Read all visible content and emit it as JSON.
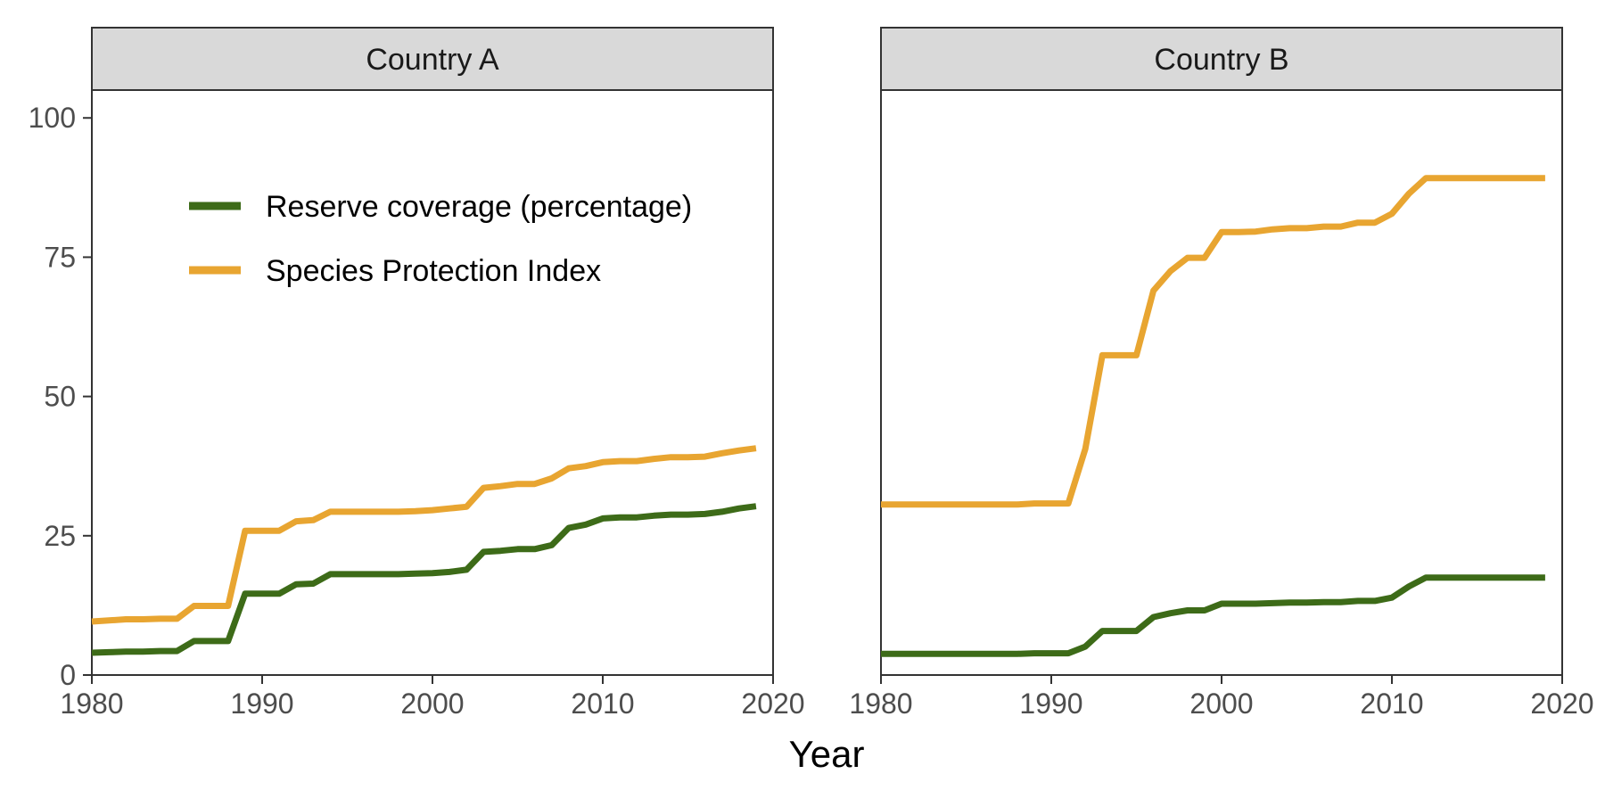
{
  "chart_data": {
    "type": "line",
    "xlabel": "Year",
    "ylabel": "",
    "xlim": [
      1980,
      2020
    ],
    "ylim": [
      0,
      105
    ],
    "x_ticks": [
      1980,
      1990,
      2000,
      2010,
      2020
    ],
    "y_ticks": [
      0,
      25,
      50,
      75,
      100
    ],
    "legend_position": "upper-left of first panel",
    "legend": [
      {
        "name": "Reserve coverage (percentage)",
        "color": "#3d6b18"
      },
      {
        "name": "Species Protection Index",
        "color": "#e8a531"
      }
    ],
    "x": [
      1980,
      1981,
      1982,
      1983,
      1984,
      1985,
      1986,
      1987,
      1988,
      1989,
      1990,
      1991,
      1992,
      1993,
      1994,
      1995,
      1996,
      1997,
      1998,
      1999,
      2000,
      2001,
      2002,
      2003,
      2004,
      2005,
      2006,
      2007,
      2008,
      2009,
      2010,
      2011,
      2012,
      2013,
      2014,
      2015,
      2016,
      2017,
      2018,
      2019
    ],
    "panels": [
      {
        "title": "Country A",
        "series": [
          {
            "name": "Reserve coverage (percentage)",
            "color": "#3d6b18",
            "values": [
              4.0,
              4.1,
              4.2,
              4.2,
              4.3,
              4.3,
              6.1,
              6.1,
              6.1,
              14.6,
              14.6,
              14.6,
              16.3,
              16.4,
              18.1,
              18.1,
              18.1,
              18.1,
              18.1,
              18.2,
              18.3,
              18.5,
              18.9,
              22.1,
              22.3,
              22.6,
              22.6,
              23.3,
              26.4,
              27.0,
              28.1,
              28.3,
              28.3,
              28.6,
              28.8,
              28.8,
              28.9,
              29.3,
              29.9,
              30.3
            ]
          },
          {
            "name": "Species Protection Index",
            "color": "#e8a531",
            "values": [
              9.6,
              9.8,
              10.0,
              10.0,
              10.1,
              10.1,
              12.4,
              12.4,
              12.4,
              25.9,
              25.9,
              25.9,
              27.6,
              27.8,
              29.3,
              29.3,
              29.3,
              29.3,
              29.3,
              29.4,
              29.6,
              29.9,
              30.2,
              33.6,
              33.9,
              34.3,
              34.3,
              35.3,
              37.1,
              37.5,
              38.2,
              38.4,
              38.4,
              38.8,
              39.1,
              39.1,
              39.2,
              39.8,
              40.3,
              40.7
            ]
          }
        ]
      },
      {
        "title": "Country B",
        "series": [
          {
            "name": "Reserve coverage (percentage)",
            "color": "#3d6b18",
            "values": [
              3.8,
              3.8,
              3.8,
              3.8,
              3.8,
              3.8,
              3.8,
              3.8,
              3.8,
              3.9,
              3.9,
              3.9,
              5.1,
              7.9,
              7.9,
              7.9,
              10.4,
              11.1,
              11.6,
              11.6,
              12.8,
              12.8,
              12.8,
              12.9,
              13.0,
              13.0,
              13.1,
              13.1,
              13.3,
              13.3,
              13.9,
              15.9,
              17.5,
              17.5,
              17.5,
              17.5,
              17.5,
              17.5,
              17.5,
              17.5
            ]
          },
          {
            "name": "Species Protection Index",
            "color": "#e8a531",
            "values": [
              30.6,
              30.6,
              30.6,
              30.6,
              30.6,
              30.6,
              30.6,
              30.6,
              30.6,
              30.8,
              30.8,
              30.8,
              40.6,
              57.4,
              57.4,
              57.4,
              69.0,
              72.5,
              74.9,
              74.9,
              79.5,
              79.5,
              79.6,
              80.0,
              80.2,
              80.2,
              80.5,
              80.5,
              81.2,
              81.2,
              82.8,
              86.4,
              89.2,
              89.2,
              89.2,
              89.2,
              89.2,
              89.2,
              89.2,
              89.2
            ]
          }
        ]
      }
    ]
  }
}
